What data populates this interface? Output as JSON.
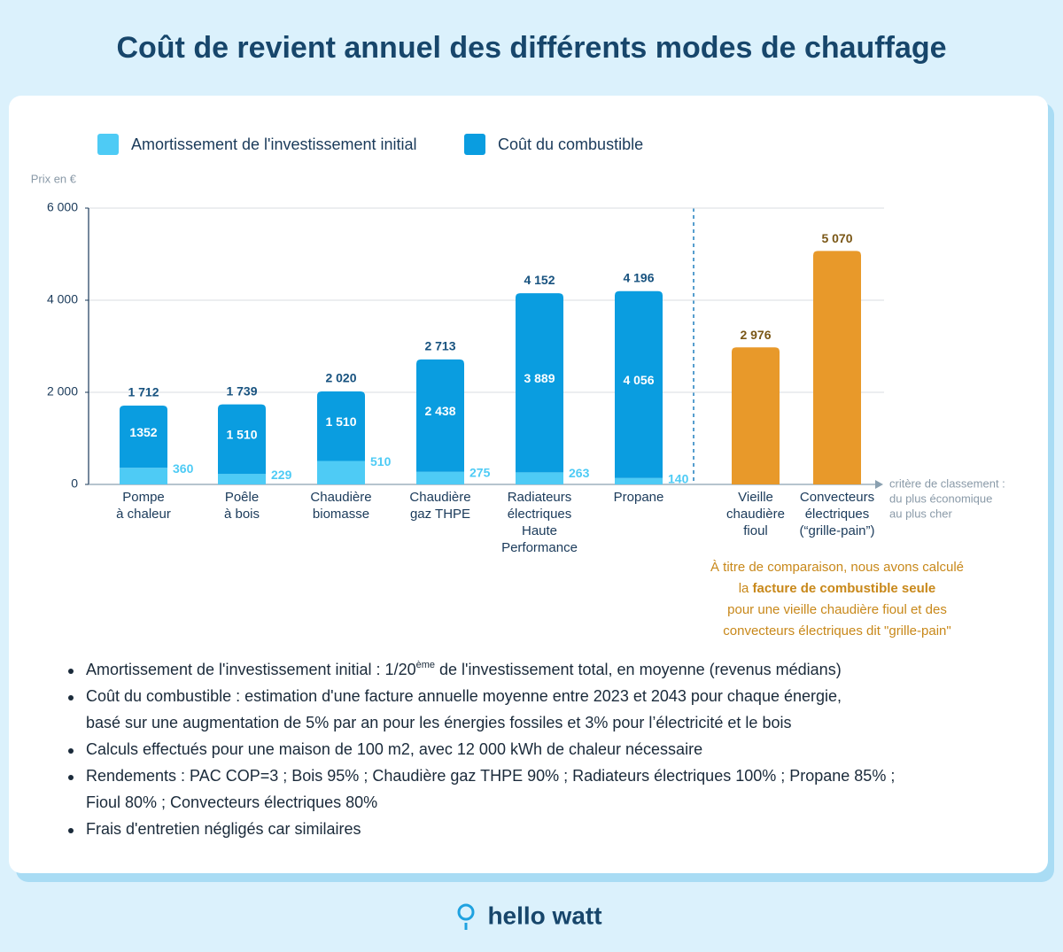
{
  "title": "Coût de revient annuel des différents modes de chauffage",
  "chart_data": {
    "type": "stacked-bar",
    "y_label": "Prix en €",
    "categories": [
      [
        "Pompe",
        "à chaleur"
      ],
      [
        "Poêle",
        "à bois"
      ],
      [
        "Chaudière",
        "biomasse"
      ],
      [
        "Chaudière",
        "gaz THPE"
      ],
      [
        "Radiateurs",
        "électriques",
        "Haute",
        "Performance"
      ],
      [
        "Propane"
      ],
      [
        "Vieille",
        "chaudière",
        "fioul"
      ],
      [
        "Convecteurs",
        "électriques",
        "(“grille-pain”)"
      ]
    ],
    "series": [
      {
        "name": "Amortissement de l'investissement initial",
        "color": "#4ecbf5",
        "values": [
          360,
          229,
          510,
          275,
          263,
          140,
          null,
          null
        ]
      },
      {
        "name": "Coût du combustible",
        "color": "#0a9de0",
        "colors": [
          "#0a9de0",
          "#0a9de0",
          "#0a9de0",
          "#0a9de0",
          "#0a9de0",
          "#0a9de0",
          "#e8992a",
          "#e8992a"
        ],
        "values": [
          1352,
          1510,
          1510,
          2438,
          3889,
          4056,
          2976,
          5070
        ],
        "value_labels": [
          "1352",
          "1 510",
          "1 510",
          "2 438",
          "3 889",
          "4 056",
          "2 976",
          "5 070"
        ]
      }
    ],
    "totals": [
      1712,
      1739,
      2020,
      2713,
      4152,
      4196,
      null,
      null
    ],
    "total_labels": [
      "1 712",
      "1 739",
      "2 020",
      "2 713",
      "4 152",
      "4 196",
      null,
      null
    ],
    "ylim": [
      0,
      6000
    ],
    "yticks": [
      0,
      {
        "value": 2000,
        "label": "2 000"
      },
      {
        "value": 4000,
        "label": "4 000"
      },
      {
        "value": 6000,
        "label": "6 000"
      }
    ],
    "grid": true,
    "x_note": [
      "critère de classement :",
      "du plus économique",
      "au plus cher"
    ],
    "annotation": [
      "À titre de comparaison, nous avons calculé",
      {
        "before": "la ",
        "bold": "facture de combustible seule"
      },
      "pour une vieille chaudière fioul et des",
      "convecteurs électriques dit \"grille-pain\""
    ]
  },
  "notes": [
    [
      {
        "before": "Amortissement de l'investissement initial : 1/20",
        "sup": "ème",
        "after": " de l'investissement total, en moyenne (revenus médians)"
      }
    ],
    [
      "Coût du combustible : estimation d'une facture annuelle moyenne entre 2023 et 2043 pour chaque énergie,",
      "basé sur une augmentation de 5% par an pour les énergies fossiles et 3% pour l’électricité et le bois"
    ],
    [
      "Calculs effectués pour une maison de 100 m2, avec 12 000 kWh de chaleur nécessaire"
    ],
    [
      "Rendements : PAC COP=3 ; Bois 95% ; Chaudière gaz THPE 90% ; Radiateurs électriques 100% ; Propane 85% ;",
      "Fioul 80% ; Convecteurs électriques 80%"
    ],
    [
      "Frais d'entretien négligés car similaires"
    ]
  ],
  "footer": "hello watt"
}
